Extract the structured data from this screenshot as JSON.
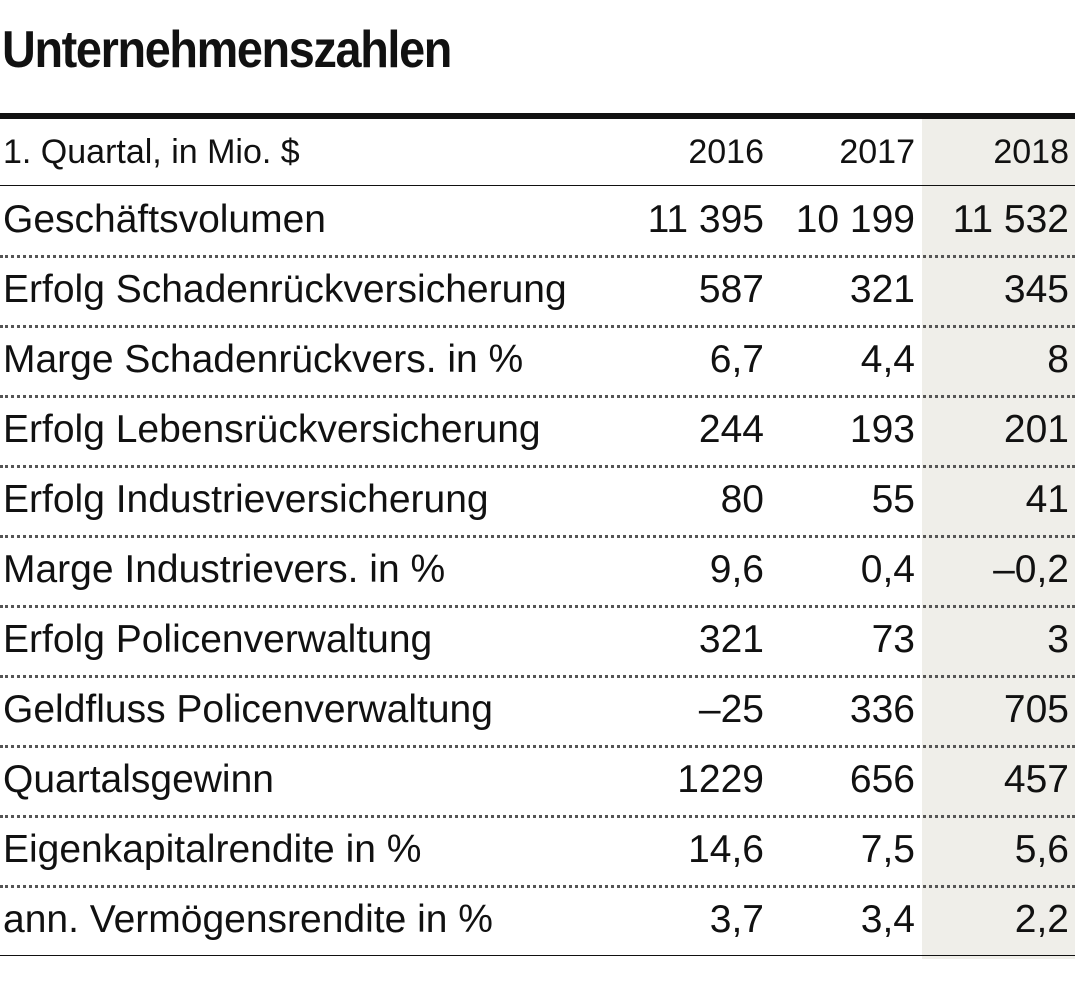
{
  "chart_data": {
    "type": "table",
    "title": "Unternehmenszahlen",
    "header": {
      "label": "1. Quartal, in Mio. $",
      "years": [
        "2016",
        "2017",
        "2018"
      ]
    },
    "highlight_column": "2018",
    "highlight_color": "#efeee9",
    "rows": [
      {
        "label": "Geschäftsvolumen",
        "values": [
          "11 395",
          "10 199",
          "11 532"
        ]
      },
      {
        "label": "Erfolg Schadenrückversicherung",
        "values": [
          "587",
          "321",
          "345"
        ]
      },
      {
        "label": "Marge Schadenrückvers. in %",
        "values": [
          "6,7",
          "4,4",
          "8"
        ]
      },
      {
        "label": "Erfolg Lebensrückversicherung",
        "values": [
          "244",
          "193",
          "201"
        ]
      },
      {
        "label": "Erfolg Industrieversicherung",
        "values": [
          "80",
          "55",
          "41"
        ]
      },
      {
        "label": "Marge Industrievers. in %",
        "values": [
          "9,6",
          "0,4",
          "–0,2"
        ]
      },
      {
        "label": "Erfolg Policenverwaltung",
        "values": [
          "321",
          "73",
          "3"
        ]
      },
      {
        "label": "Geldfluss Policenverwaltung",
        "values": [
          "–25",
          "336",
          "705"
        ]
      },
      {
        "label": "Quartalsgewinn",
        "values": [
          "1229",
          "656",
          "457"
        ]
      },
      {
        "label": "Eigenkapitalrendite in %",
        "values": [
          "14,6",
          "7,5",
          "5,6"
        ]
      },
      {
        "label": "ann. Vermögensrendite in %",
        "values": [
          "3,7",
          "3,4",
          "2,2"
        ]
      }
    ]
  }
}
